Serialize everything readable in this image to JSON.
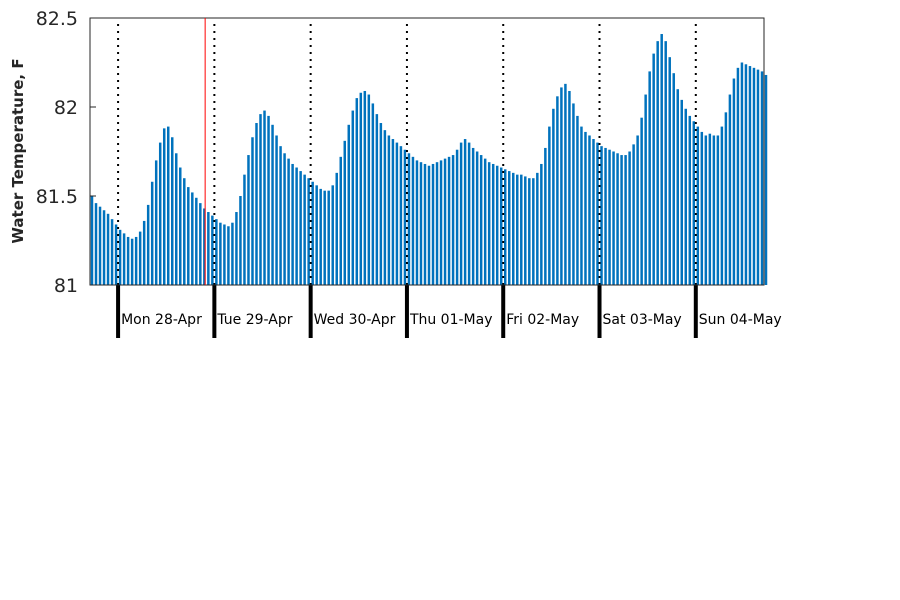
{
  "chart_data": {
    "type": "bar",
    "title": "",
    "xlabel": "",
    "ylabel": "Water Temperature, F",
    "ylim": [
      81,
      82.5
    ],
    "yticks": [
      81,
      81.5,
      82,
      82.5
    ],
    "ytick_labels": [
      "81",
      "81.5",
      "82",
      "82.5"
    ],
    "x_start_hour": 17,
    "x_end_hour": 185,
    "day_labels": [
      "Mon 28-Apr",
      "Tue 29-Apr",
      "Wed 30-Apr",
      "Thu 01-May",
      "Fri 02-May",
      "Sat 03-May",
      "Sun 04-May"
    ],
    "day_start_hours": [
      24,
      48,
      72,
      96,
      120,
      144,
      168
    ],
    "current_time_hour": 45.7,
    "colors": {
      "bar": "#0072bd",
      "current_time_line": "#ff0000",
      "day_divider": "#000000"
    },
    "grid": false,
    "legend": "none",
    "values": [
      81.5,
      81.46,
      81.44,
      81.42,
      81.4,
      81.37,
      81.34,
      81.31,
      81.29,
      81.27,
      81.26,
      81.27,
      81.3,
      81.36,
      81.45,
      81.58,
      81.7,
      81.8,
      81.88,
      81.89,
      81.83,
      81.74,
      81.66,
      81.6,
      81.55,
      81.52,
      81.49,
      81.46,
      81.43,
      81.41,
      81.39,
      81.37,
      81.35,
      81.34,
      81.33,
      81.35,
      81.41,
      81.5,
      81.62,
      81.73,
      81.83,
      81.91,
      81.96,
      81.98,
      81.95,
      81.9,
      81.84,
      81.78,
      81.74,
      81.71,
      81.68,
      81.66,
      81.64,
      81.62,
      81.6,
      81.58,
      81.56,
      81.54,
      81.53,
      81.53,
      81.56,
      81.63,
      81.72,
      81.81,
      81.9,
      81.98,
      82.05,
      82.08,
      82.09,
      82.07,
      82.02,
      81.96,
      81.91,
      81.87,
      81.84,
      81.82,
      81.8,
      81.78,
      81.76,
      81.74,
      81.72,
      81.7,
      81.69,
      81.68,
      81.67,
      81.68,
      81.69,
      81.7,
      81.71,
      81.72,
      81.73,
      81.76,
      81.8,
      81.82,
      81.8,
      81.77,
      81.75,
      81.73,
      81.71,
      81.69,
      81.68,
      81.67,
      81.66,
      81.65,
      81.64,
      81.63,
      81.62,
      81.62,
      81.61,
      81.6,
      81.6,
      81.63,
      81.68,
      81.77,
      81.89,
      81.99,
      82.06,
      82.11,
      82.13,
      82.09,
      82.02,
      81.95,
      81.89,
      81.86,
      81.84,
      81.82,
      81.8,
      81.78,
      81.77,
      81.76,
      81.75,
      81.74,
      81.73,
      81.73,
      81.75,
      81.79,
      81.84,
      81.94,
      82.07,
      82.2,
      82.3,
      82.37,
      82.41,
      82.37,
      82.28,
      82.19,
      82.1,
      82.04,
      81.99,
      81.95,
      81.92,
      81.89,
      81.86,
      81.84,
      81.85,
      81.84,
      81.84,
      81.89,
      81.97,
      82.07,
      82.16,
      82.22,
      82.25,
      82.24,
      82.23,
      82.22,
      82.21,
      82.2,
      82.18
    ]
  }
}
